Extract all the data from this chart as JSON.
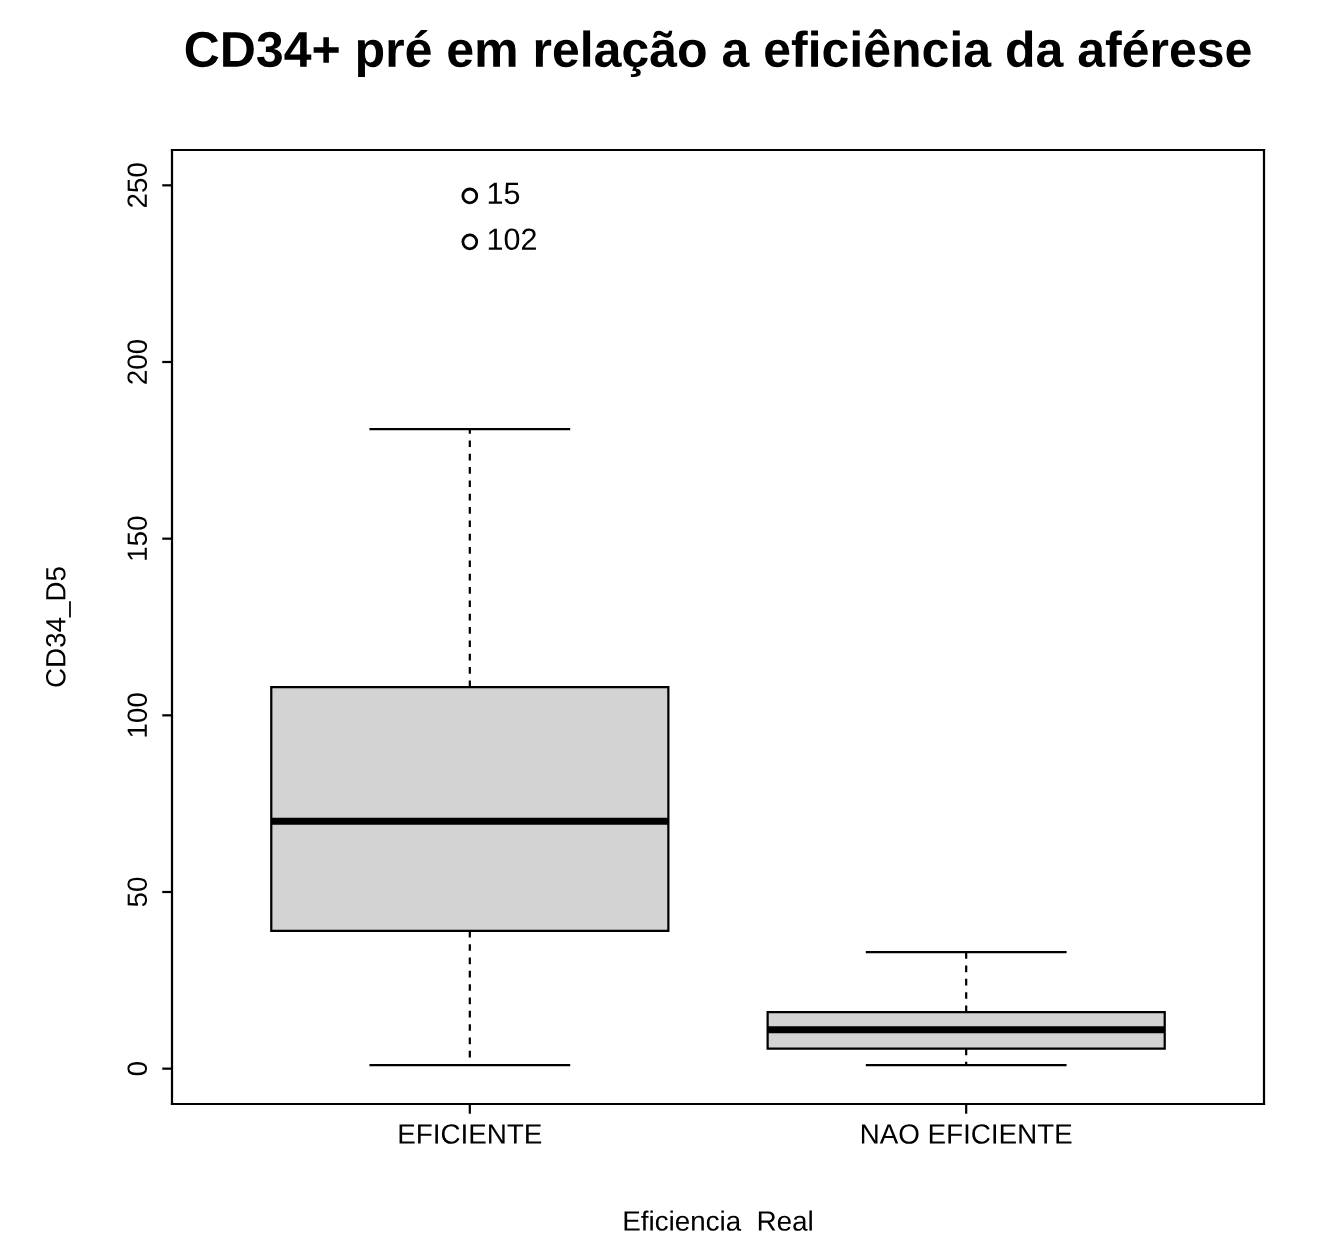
{
  "chart_data": {
    "type": "box",
    "title": "CD34+ pré em relação a eficiência da aférese",
    "xlabel": "Eficiencia  Real",
    "ylabel": "CD34_D5",
    "categories": [
      "EFICIENTE",
      "NAO EFICIENTE"
    ],
    "boxes": [
      {
        "low": 1,
        "q1": 39,
        "median": 70,
        "q3": 108,
        "high": 181,
        "outliers": [
          247,
          234
        ]
      },
      {
        "low": 1,
        "q1": 5.7,
        "median": 11,
        "q3": 16,
        "high": 33
      }
    ],
    "color": "#d3d3d3",
    "ylim": [
      -10,
      260
    ],
    "yticks": [
      0,
      50,
      100,
      150,
      200,
      250
    ],
    "grid": false,
    "annotations": [
      "15",
      "102"
    ]
  }
}
